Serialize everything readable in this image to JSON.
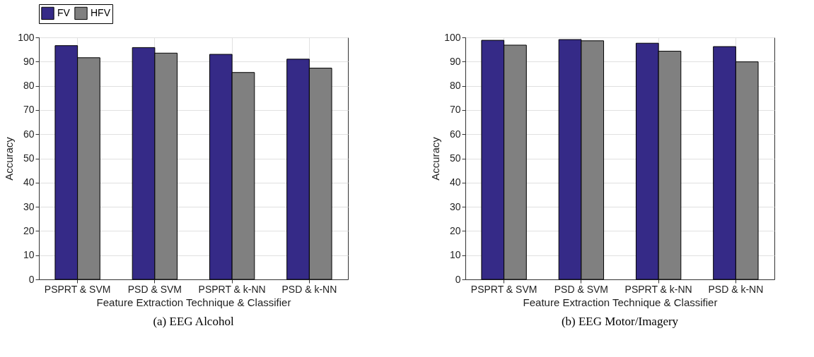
{
  "chart_data": [
    {
      "type": "bar",
      "title": "(a) EEG Alcohol",
      "xlabel": "Feature Extraction Technique & Classifier",
      "ylabel": "Accuracy",
      "categories": [
        "PSPRT & SVM",
        "PSD & SVM",
        "PSPRT & k-NN",
        "PSD & k-NN"
      ],
      "series": [
        {
          "name": "FV",
          "color": "#352a87",
          "values": [
            96.6,
            95.8,
            93.0,
            91.0
          ]
        },
        {
          "name": "HFV",
          "color": "#808080",
          "values": [
            91.6,
            93.5,
            85.5,
            87.3
          ]
        }
      ],
      "ylim": [
        0,
        100
      ],
      "yticks": [
        0,
        10,
        20,
        30,
        40,
        50,
        60,
        70,
        80,
        90,
        100
      ],
      "grid": true,
      "legend": "top"
    },
    {
      "type": "bar",
      "title": "(b) EEG Motor/Imagery",
      "xlabel": "Feature Extraction Technique & Classifier",
      "ylabel": "Accuracy",
      "categories": [
        "PSPRT & SVM",
        "PSD & SVM",
        "PSPRT & k-NN",
        "PSD & k-NN"
      ],
      "series": [
        {
          "name": "FV",
          "color": "#352a87",
          "values": [
            98.8,
            99.1,
            97.6,
            96.2
          ]
        },
        {
          "name": "HFV",
          "color": "#808080",
          "values": [
            96.8,
            98.6,
            94.3,
            89.9
          ]
        }
      ],
      "ylim": [
        0,
        100
      ],
      "yticks": [
        0,
        10,
        20,
        30,
        40,
        50,
        60,
        70,
        80,
        90,
        100
      ],
      "grid": true,
      "legend": "top"
    }
  ]
}
